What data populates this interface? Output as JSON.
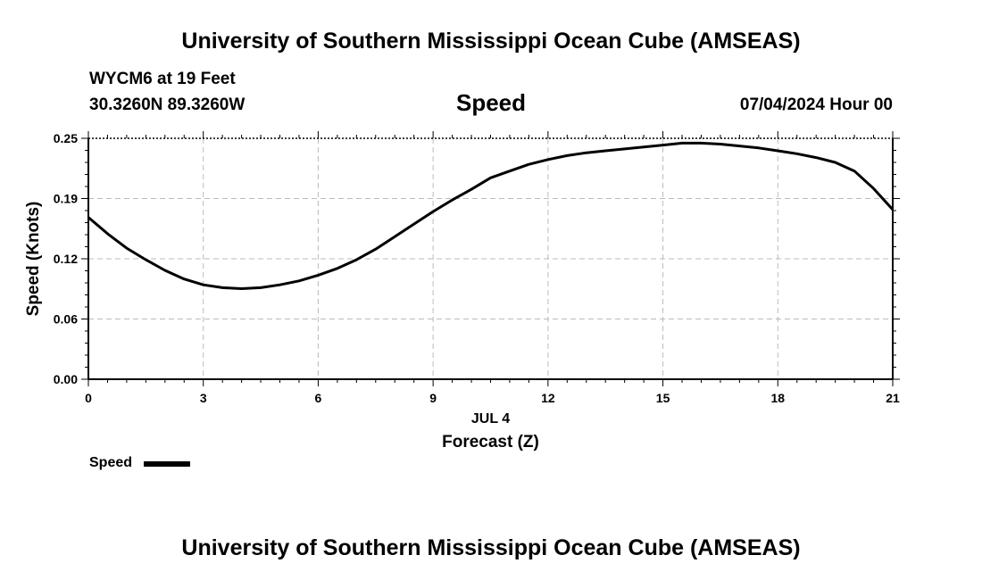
{
  "header": {
    "title_top": "University of Southern Mississippi Ocean Cube (AMSEAS)",
    "title_bottom": "University of Southern Mississippi Ocean Cube (AMSEAS)",
    "station": "WYCM6 at 19 Feet",
    "coords": "30.3260N  89.3260W",
    "datetime": "07/04/2024 Hour 00"
  },
  "legend": {
    "label": "Speed",
    "color": "#000000"
  },
  "chart_data": {
    "type": "line",
    "title": "Speed",
    "xlabel": "Forecast (Z)",
    "xsublabel": "JUL 4",
    "ylabel": "Speed (Knots)",
    "xlim": [
      0,
      21
    ],
    "ylim": [
      0,
      0.25
    ],
    "xticks": [
      0,
      3,
      6,
      9,
      12,
      15,
      18,
      21
    ],
    "xtick_labels": [
      "0",
      "3",
      "6",
      "9",
      "12",
      "15",
      "18",
      "21"
    ],
    "yticks": [
      0,
      0.0625,
      0.125,
      0.1875,
      0.25
    ],
    "ytick_labels": [
      "0.00",
      "0.06",
      "0.12",
      "0.19",
      "0.25"
    ],
    "grid": true,
    "series": [
      {
        "name": "Speed",
        "color": "#000000",
        "x": [
          0,
          0.5,
          1,
          1.5,
          2,
          2.5,
          3,
          3.5,
          4,
          4.5,
          5,
          5.5,
          6,
          6.5,
          7,
          7.5,
          8,
          8.5,
          9,
          9.5,
          10,
          10.5,
          11,
          11.5,
          12,
          12.5,
          13,
          13.5,
          14,
          14.5,
          15,
          15.5,
          16,
          16.5,
          17,
          17.5,
          18,
          18.5,
          19,
          19.5,
          20,
          20.5,
          21
        ],
        "values": [
          0.168,
          0.151,
          0.136,
          0.124,
          0.113,
          0.104,
          0.098,
          0.095,
          0.094,
          0.095,
          0.098,
          0.102,
          0.108,
          0.115,
          0.124,
          0.135,
          0.148,
          0.161,
          0.174,
          0.186,
          0.197,
          0.209,
          0.216,
          0.223,
          0.228,
          0.232,
          0.235,
          0.237,
          0.239,
          0.241,
          0.243,
          0.245,
          0.245,
          0.244,
          0.242,
          0.24,
          0.237,
          0.234,
          0.23,
          0.225,
          0.216,
          0.198,
          0.176
        ]
      }
    ]
  }
}
